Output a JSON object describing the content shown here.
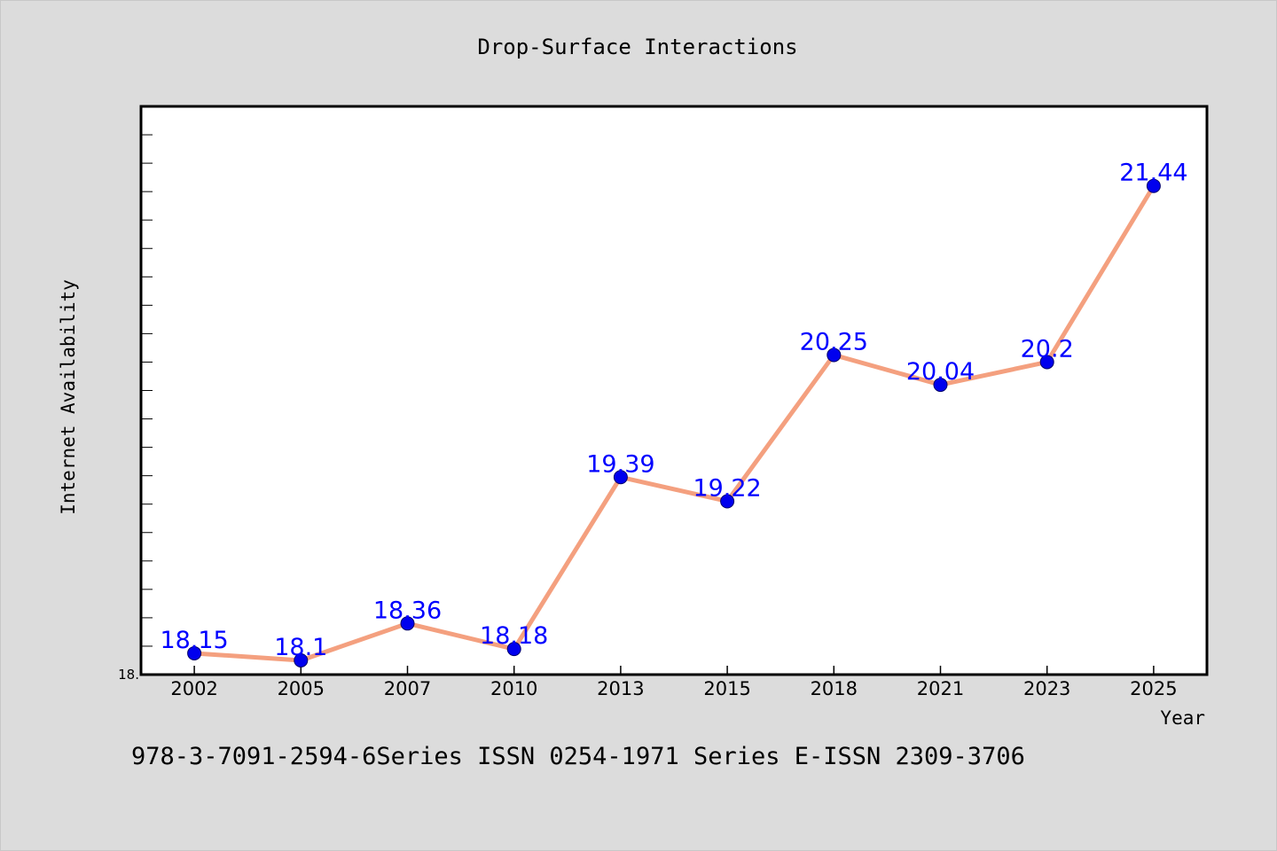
{
  "chart_data": {
    "type": "line",
    "title": "Drop-Surface Interactions",
    "xlabel": "Year",
    "ylabel": "Internet Availability",
    "categories": [
      "2002",
      "2005",
      "2007",
      "2010",
      "2013",
      "2015",
      "2018",
      "2021",
      "2023",
      "2025"
    ],
    "series": [
      {
        "values": [
          18.15,
          18.1,
          18.36,
          18.18,
          19.39,
          19.22,
          20.25,
          20.04,
          20.2,
          21.44
        ],
        "labels": [
          "18.15",
          "18.1",
          "18.36",
          "18.18",
          "19.39",
          "19.22",
          "20.25",
          "20.04",
          "20.2",
          "21.44"
        ]
      }
    ],
    "ylim": [
      18.0,
      22.0
    ],
    "y_tick_label": "18.",
    "grid": false,
    "legend": "none",
    "colors": {
      "line": "#f4a07f",
      "marker": "#0000ee",
      "data_label": "#0000ff",
      "plot_background": "#ffffff",
      "page_background": "#dcdcdc",
      "axis": "#000000"
    }
  },
  "footer": "978-3-7091-2594-6Series ISSN 0254-1971 Series E-ISSN 2309-3706"
}
